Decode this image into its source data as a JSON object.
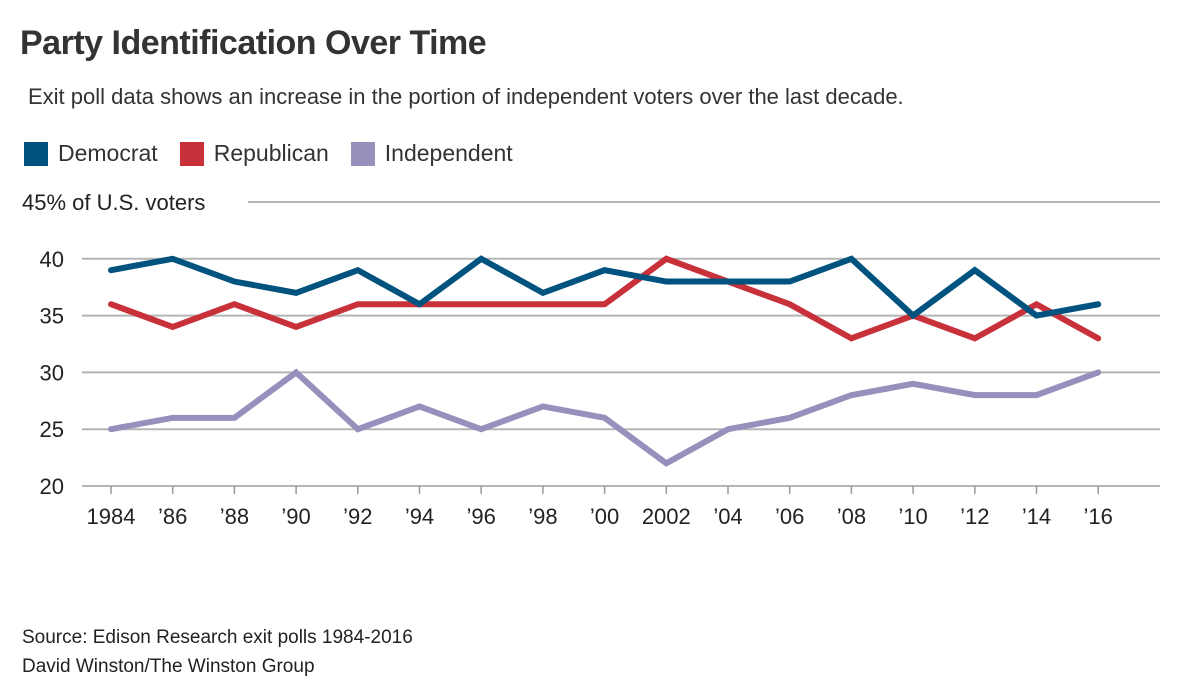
{
  "title": "Party Identification Over Time",
  "subtitle": "Exit poll data shows an increase in the portion of independent voters over the last decade.",
  "source_lines": [
    "Source: Edison Research exit polls 1984-2016",
    "David Winston/The Winston Group"
  ],
  "chart_data": {
    "type": "line",
    "title": "Party Identification Over Time",
    "ylabel": "45% of U.S. voters",
    "ylim": [
      20,
      45
    ],
    "yticks": [
      20,
      25,
      30,
      35,
      40
    ],
    "ytick_labels": [
      "20",
      "25",
      "30",
      "35",
      "40"
    ],
    "grid": true,
    "legend_placement": "top-left",
    "categories": [
      1984,
      1986,
      1988,
      1990,
      1992,
      1994,
      1996,
      1998,
      2000,
      2002,
      2004,
      2006,
      2008,
      2010,
      2012,
      2014,
      2016
    ],
    "xtick_labels": [
      "1984",
      "’86",
      "’88",
      "’90",
      "’92",
      "’94",
      "’96",
      "’98",
      "’00",
      "2002",
      "’04",
      "’06",
      "’08",
      "’10",
      "’12",
      "’14",
      "’16"
    ],
    "series": [
      {
        "name": "Democrat",
        "color": "#00527f",
        "values": [
          39,
          40,
          38,
          37,
          39,
          36,
          40,
          37,
          39,
          38,
          38,
          38,
          40,
          35,
          39,
          35,
          36
        ]
      },
      {
        "name": "Republican",
        "color": "#c8303a",
        "values": [
          36,
          34,
          36,
          34,
          36,
          36,
          36,
          36,
          36,
          40,
          38,
          36,
          33,
          35,
          33,
          36,
          33
        ]
      },
      {
        "name": "Independent",
        "color": "#988fbc",
        "values": [
          25,
          26,
          26,
          30,
          25,
          27,
          25,
          27,
          26,
          22,
          25,
          26,
          28,
          29,
          28,
          28,
          30
        ]
      }
    ]
  }
}
